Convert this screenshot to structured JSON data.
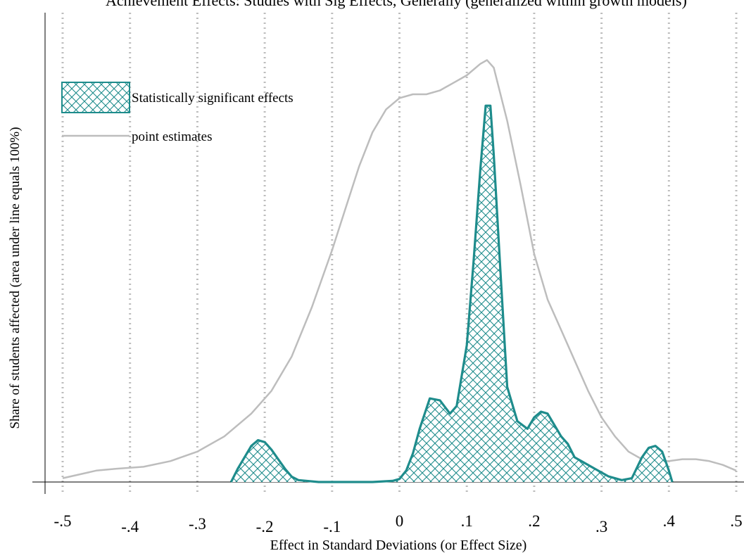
{
  "chart_data": {
    "type": "area",
    "title": "Achievement Effects: Studies with Sig Effects, Generally (generalized within growth models)",
    "xlabel": "Effect in Standard Deviations (or Effect Size)",
    "ylabel": "Share of students affected (area under line equals 100%)",
    "xlim": [
      -0.5,
      0.5
    ],
    "x_ticks": [
      -0.5,
      -0.4,
      -0.3,
      -0.2,
      -0.1,
      0,
      0.1,
      0.2,
      0.3,
      0.4,
      0.5
    ],
    "x_tick_labels": [
      "-.5",
      "-.4",
      "-.3",
      "-.2",
      "-.1",
      "0",
      ".1",
      ".2",
      ".3",
      ".4",
      ".5"
    ],
    "y_ticks_shown": false,
    "grid": "vertical dotted lines at each x tick",
    "legend_position": "top-left",
    "series": [
      {
        "name": "Statistically significant effects",
        "style": "cross-hatched filled area",
        "color": "#1e8c8c",
        "x": [
          -0.25,
          -0.24,
          -0.23,
          -0.22,
          -0.21,
          -0.2,
          -0.19,
          -0.18,
          -0.17,
          -0.16,
          -0.15,
          -0.12,
          -0.08,
          -0.04,
          -0.01,
          0.0,
          0.01,
          0.02,
          0.03,
          0.045,
          0.06,
          0.075,
          0.085,
          0.1,
          0.11,
          0.12,
          0.128,
          0.135,
          0.14,
          0.15,
          0.16,
          0.175,
          0.19,
          0.2,
          0.21,
          0.22,
          0.23,
          0.24,
          0.25,
          0.26,
          0.27,
          0.29,
          0.31,
          0.33,
          0.345,
          0.36,
          0.37,
          0.38,
          0.39,
          0.4,
          0.405
        ],
        "y": [
          0.0,
          0.035,
          0.065,
          0.095,
          0.11,
          0.105,
          0.085,
          0.06,
          0.035,
          0.014,
          0.005,
          0.0,
          0.0,
          0.0,
          0.003,
          0.008,
          0.03,
          0.075,
          0.14,
          0.22,
          0.215,
          0.18,
          0.2,
          0.36,
          0.58,
          0.82,
          0.99,
          0.99,
          0.86,
          0.55,
          0.25,
          0.16,
          0.14,
          0.17,
          0.185,
          0.18,
          0.15,
          0.12,
          0.1,
          0.065,
          0.055,
          0.035,
          0.015,
          0.005,
          0.01,
          0.065,
          0.09,
          0.095,
          0.08,
          0.03,
          0.0
        ]
      },
      {
        "name": "point estimates",
        "style": "light gray line",
        "color": "#bdbdbd",
        "x": [
          -0.5,
          -0.45,
          -0.42,
          -0.38,
          -0.34,
          -0.3,
          -0.26,
          -0.22,
          -0.19,
          -0.16,
          -0.13,
          -0.1,
          -0.08,
          -0.06,
          -0.04,
          -0.02,
          0.0,
          0.02,
          0.04,
          0.06,
          0.08,
          0.1,
          0.12,
          0.13,
          0.14,
          0.16,
          0.18,
          0.2,
          0.22,
          0.24,
          0.26,
          0.28,
          0.3,
          0.32,
          0.34,
          0.36,
          0.38,
          0.4,
          0.42,
          0.44,
          0.46,
          0.48,
          0.5
        ],
        "y": [
          0.01,
          0.03,
          0.035,
          0.04,
          0.055,
          0.08,
          0.12,
          0.18,
          0.24,
          0.33,
          0.46,
          0.61,
          0.72,
          0.83,
          0.92,
          0.98,
          1.01,
          1.02,
          1.02,
          1.03,
          1.05,
          1.07,
          1.1,
          1.11,
          1.09,
          0.95,
          0.78,
          0.6,
          0.48,
          0.4,
          0.32,
          0.24,
          0.17,
          0.12,
          0.08,
          0.06,
          0.055,
          0.055,
          0.06,
          0.06,
          0.055,
          0.045,
          0.03
        ]
      }
    ]
  }
}
